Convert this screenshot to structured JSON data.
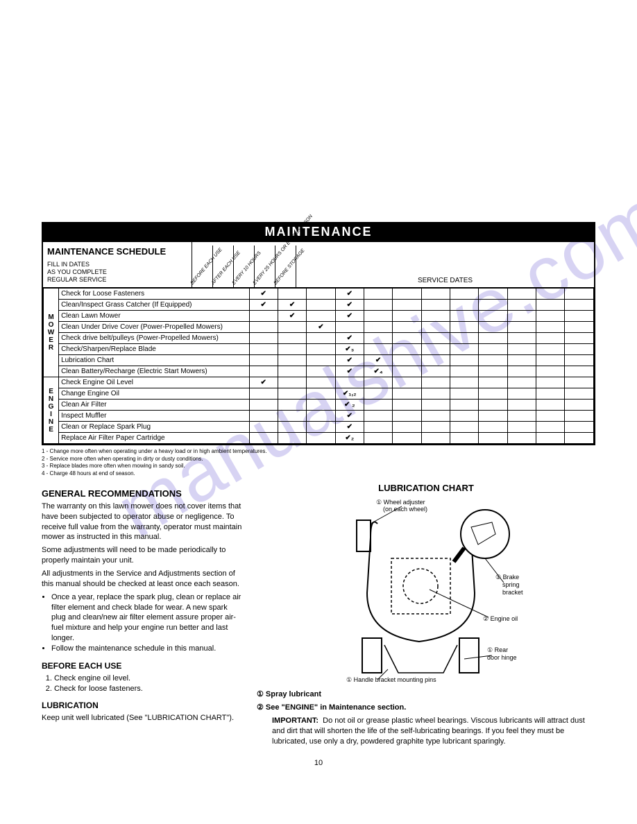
{
  "watermark": "manualshive.com",
  "banner": "MAINTENANCE",
  "schedule": {
    "title": "MAINTENANCE SCHEDULE",
    "subtitle": "FILL IN DATES\nAS YOU COMPLETE\nREGULAR SERVICE",
    "columns": [
      "BEFORE EACH USE",
      "AFTER EACH USE",
      "EVERY 10 HOURS",
      "EVERY 25 HOURS OR EVERY SEASON",
      "BEFORE STORAGE"
    ],
    "service_dates_label": "SERVICE DATES",
    "groups": [
      {
        "label": "MOWER",
        "rows": [
          {
            "task": "Check for Loose Fasteners",
            "marks": [
              "✔",
              "",
              "",
              "✔",
              ""
            ]
          },
          {
            "task": "Clean/Inspect Grass Catcher (If Equipped)",
            "marks": [
              "✔",
              "✔",
              "",
              "✔",
              ""
            ]
          },
          {
            "task": "Clean Lawn Mower",
            "marks": [
              "",
              "✔",
              "",
              "✔",
              ""
            ]
          },
          {
            "task": "Clean Under Drive Cover (Power-Propelled Mowers)",
            "marks": [
              "",
              "",
              "✔",
              "",
              ""
            ]
          },
          {
            "task": "Check drive belt/pulleys (Power-Propelled Mowers)",
            "marks": [
              "",
              "",
              "",
              "✔",
              ""
            ]
          },
          {
            "task": "Check/Sharpen/Replace Blade",
            "marks": [
              "",
              "",
              "",
              "✔₃",
              ""
            ]
          },
          {
            "task": "Lubrication Chart",
            "marks": [
              "",
              "",
              "",
              "✔",
              "✔"
            ]
          },
          {
            "task": "Clean Battery/Recharge (Electric Start Mowers)",
            "marks": [
              "",
              "",
              "",
              "✔",
              "✔₄"
            ]
          }
        ]
      },
      {
        "label": "ENGINE",
        "rows": [
          {
            "task": "Check Engine Oil Level",
            "marks": [
              "✔",
              "",
              "",
              "",
              ""
            ]
          },
          {
            "task": "Change Engine Oil",
            "marks": [
              "",
              "",
              "",
              "✔₁,₂",
              ""
            ]
          },
          {
            "task": "Clean Air Filter",
            "marks": [
              "",
              "",
              "",
              "✔ ₂",
              ""
            ]
          },
          {
            "task": "Inspect Muffler",
            "marks": [
              "",
              "",
              "",
              "✔",
              ""
            ]
          },
          {
            "task": "Clean or Replace Spark Plug",
            "marks": [
              "",
              "",
              "",
              "✔",
              ""
            ]
          },
          {
            "task": "Replace Air Filter Paper Cartridge",
            "marks": [
              "",
              "",
              "",
              "✔₂",
              ""
            ]
          }
        ]
      }
    ]
  },
  "footnotes": [
    "1 - Change more often when operating under a heavy load or in high ambient temperatures.",
    "2 - Service more often when operating in dirty or dusty conditions.",
    "3 - Replace blades more often when mowing in sandy soil.",
    "4 - Charge 48 hours at end of season."
  ],
  "general": {
    "heading": "GENERAL RECOMMENDATIONS",
    "p1": "The warranty on this lawn mower does not cover items that have been subjected to operator abuse or negligence. To receive full value from the warranty, operator must maintain mower as instructed in this manual.",
    "p2": "Some adjustments will need to be made periodically to properly maintain your unit.",
    "p3": "All adjustments in the Service and Adjustments section of this manual should be checked at least once each season.",
    "bullets": [
      "Once a year, replace the spark plug, clean or replace air filter element and check blade for wear. A new spark plug and clean/new air filter element assure proper air-fuel mixture and help your engine run better and last longer.",
      "Follow the maintenance schedule in this manual."
    ]
  },
  "before_each_use": {
    "heading": "BEFORE EACH USE",
    "items": [
      "Check engine oil level.",
      "Check for loose fasteners."
    ]
  },
  "lubrication": {
    "heading": "LUBRICATION",
    "text": "Keep unit well lubricated (See \"LUBRICATION CHART\")."
  },
  "lubri_chart": {
    "title": "LUBRICATION CHART",
    "labels": {
      "wheel_adjuster": "① Wheel adjuster (on each wheel)",
      "brake_spring": "① Brake spring bracket",
      "engine_oil": "② Engine oil",
      "rear_door": "① Rear door hinge",
      "handle_pins": "① Handle bracket mounting pins"
    },
    "legend1": "① Spray lubricant",
    "legend2": "② See \"ENGINE\" in Maintenance section.",
    "important_label": "IMPORTANT:",
    "important": "Do not oil or grease plastic wheel bearings. Viscous lubricants will attract dust and dirt that will shorten the life of the self-lubricating bearings. If you feel they must be lubricated, use only a dry, powdered graphite type lubricant sparingly."
  },
  "page_number": "10",
  "colors": {
    "text": "#000000",
    "bg": "#ffffff",
    "watermark": "rgba(140,130,220,0.35)"
  }
}
